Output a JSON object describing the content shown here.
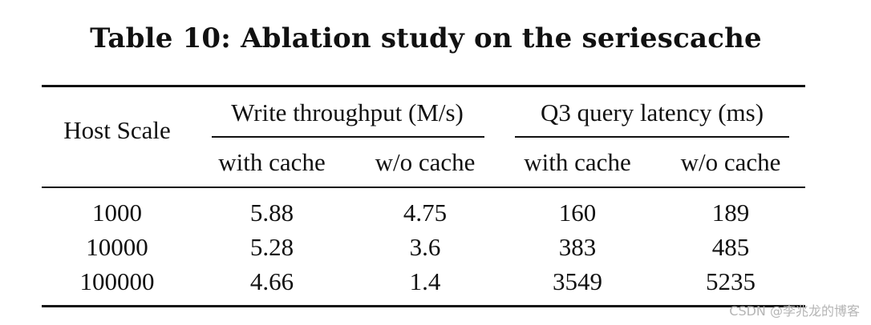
{
  "caption": "Table 10: Ablation study on the seriescache",
  "table": {
    "row_header": "Host Scale",
    "groups": [
      "Write throughput (M/s)",
      "Q3 query latency (ms)"
    ],
    "subheaders": [
      "with cache",
      "w/o cache",
      "with cache",
      "w/o cache"
    ],
    "rows": [
      [
        "1000",
        "5.88",
        "4.75",
        "160",
        "189"
      ],
      [
        "10000",
        "5.28",
        "3.6",
        "383",
        "485"
      ],
      [
        "100000",
        "4.66",
        "1.4",
        "3549",
        "5235"
      ]
    ]
  },
  "watermark": "CSDN @李兆龙的博客"
}
